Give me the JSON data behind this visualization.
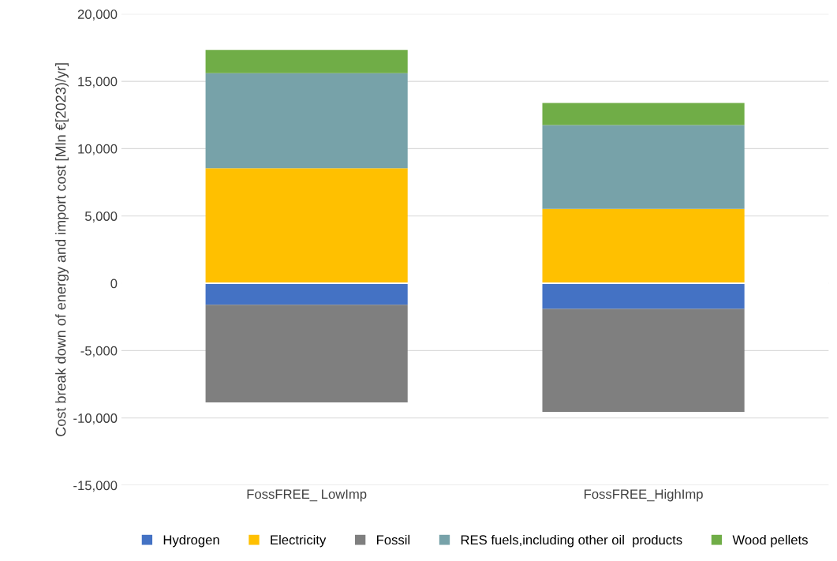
{
  "chart_data": {
    "type": "bar",
    "stacked": true,
    "ylabel": "Cost break down of energy and import cost [Mln €[2023)/yr]",
    "categories": [
      "FossFREE_ LowImp",
      "FossFREE_HighImp"
    ],
    "series": [
      {
        "name": "Hydrogen",
        "color": "#4472c4",
        "values": [
          -1600,
          -1900
        ]
      },
      {
        "name": "Electricity",
        "color": "#ffc000",
        "values": [
          8550,
          5520
        ]
      },
      {
        "name": "Fossil",
        "color": "#7f7f7f",
        "values": [
          -7250,
          -7650
        ]
      },
      {
        "name": "RES fuels,including other oil  products",
        "color": "#77a2a9",
        "values": [
          7050,
          6230
        ]
      },
      {
        "name": "Wood pellets",
        "color": "#70ad47",
        "values": [
          1730,
          1650
        ]
      }
    ],
    "ylim": [
      -15000,
      20000
    ],
    "yticks": [
      {
        "value": -15000,
        "label": "-15,000"
      },
      {
        "value": -10000,
        "label": "-10,000"
      },
      {
        "value": -5000,
        "label": "-5,000"
      },
      0,
      {
        "value": 5000,
        "label": "5,000"
      },
      {
        "value": 10000,
        "label": "10,000"
      },
      {
        "value": 15000,
        "label": "15,000"
      },
      {
        "value": 20000,
        "label": "20,000"
      }
    ],
    "grid": "y",
    "legend": "bottom"
  }
}
